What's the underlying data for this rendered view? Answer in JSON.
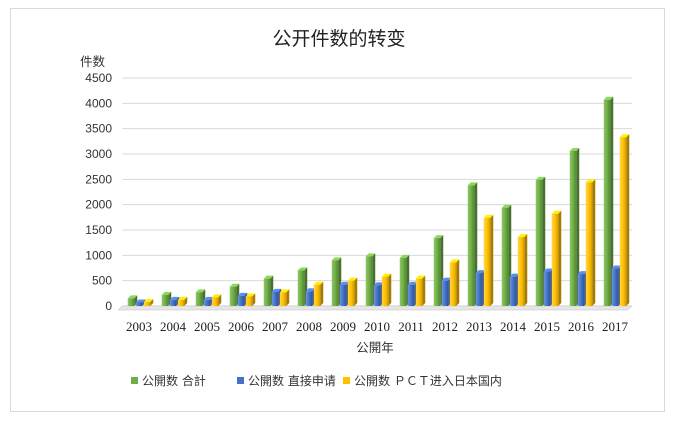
{
  "chart_data": {
    "type": "bar",
    "title": "公开件数的转变",
    "ylabel": "件数",
    "xlabel": "公開年",
    "ylim": [
      0,
      4500
    ],
    "yticks": [
      0,
      500,
      1000,
      1500,
      2000,
      2500,
      3000,
      3500,
      4000,
      4500
    ],
    "grid": true,
    "legend_position": "bottom",
    "categories": [
      "2003",
      "2004",
      "2005",
      "2006",
      "2007",
      "2008",
      "2009",
      "2010",
      "2011",
      "2012",
      "2013",
      "2014",
      "2015",
      "2016",
      "2017"
    ],
    "series": [
      {
        "name": "公開数 合計",
        "color": "#70ad47",
        "values": [
          150,
          220,
          270,
          380,
          540,
          700,
          900,
          980,
          950,
          1340,
          2380,
          1940,
          2490,
          3060,
          4070
        ]
      },
      {
        "name": "公開数 直接申请",
        "color": "#4472c4",
        "values": [
          70,
          120,
          120,
          200,
          280,
          290,
          420,
          410,
          420,
          500,
          650,
          580,
          680,
          630,
          740
        ]
      },
      {
        "name": "公開数 ＰＣＴ进入日本国内",
        "color": "#ffc000",
        "values": [
          80,
          120,
          170,
          190,
          270,
          420,
          500,
          580,
          540,
          860,
          1740,
          1360,
          1820,
          2440,
          3330
        ]
      }
    ]
  }
}
